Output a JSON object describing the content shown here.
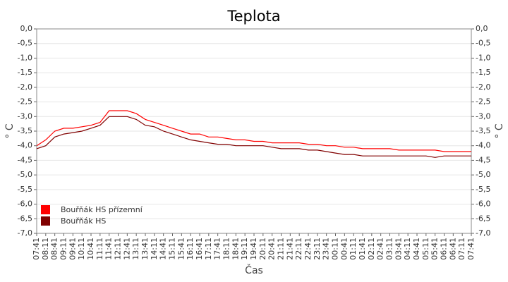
{
  "chart_data": {
    "type": "line",
    "title": "Teplota",
    "x_label": "Čas",
    "y_label": "° C",
    "categories": [
      "07:41",
      "08:11",
      "08:41",
      "09:11",
      "09:41",
      "10:11",
      "10:41",
      "11:11",
      "11:41",
      "12:11",
      "12:41",
      "13:11",
      "13:41",
      "14:11",
      "14:41",
      "15:11",
      "15:41",
      "16:11",
      "16:41",
      "17:11",
      "17:41",
      "18:11",
      "18:41",
      "19:11",
      "19:41",
      "20:11",
      "20:41",
      "21:11",
      "21:41",
      "22:11",
      "22:41",
      "23:11",
      "23:41",
      "00:11",
      "00:41",
      "01:11",
      "01:41",
      "02:11",
      "02:41",
      "03:11",
      "03:41",
      "04:11",
      "04:41",
      "05:11",
      "05:41",
      "06:11",
      "06:41",
      "07:11",
      "07:41"
    ],
    "series": [
      {
        "name": "Bouřňák HS přízemní",
        "color": "#ff0000",
        "values": [
          -4.0,
          -3.8,
          -3.5,
          -3.4,
          -3.4,
          -3.35,
          -3.3,
          -3.2,
          -2.8,
          -2.8,
          -2.8,
          -2.9,
          -3.1,
          -3.2,
          -3.3,
          -3.4,
          -3.5,
          -3.6,
          -3.6,
          -3.7,
          -3.7,
          -3.75,
          -3.8,
          -3.8,
          -3.85,
          -3.85,
          -3.9,
          -3.9,
          -3.9,
          -3.9,
          -3.95,
          -3.95,
          -4.0,
          -4.0,
          -4.05,
          -4.05,
          -4.1,
          -4.1,
          -4.1,
          -4.1,
          -4.15,
          -4.15,
          -4.15,
          -4.15,
          -4.15,
          -4.2,
          -4.2,
          -4.2,
          -4.2
        ]
      },
      {
        "name": "Bouřňák HS",
        "color": "#800000",
        "values": [
          -4.1,
          -4.0,
          -3.7,
          -3.6,
          -3.55,
          -3.5,
          -3.4,
          -3.3,
          -3.0,
          -3.0,
          -3.0,
          -3.1,
          -3.3,
          -3.35,
          -3.5,
          -3.6,
          -3.7,
          -3.8,
          -3.85,
          -3.9,
          -3.95,
          -3.95,
          -4.0,
          -4.0,
          -4.0,
          -4.0,
          -4.05,
          -4.1,
          -4.1,
          -4.1,
          -4.15,
          -4.15,
          -4.2,
          -4.25,
          -4.3,
          -4.3,
          -4.35,
          -4.35,
          -4.35,
          -4.35,
          -4.35,
          -4.35,
          -4.35,
          -4.35,
          -4.4,
          -4.35,
          -4.35,
          -4.35,
          -4.35
        ]
      }
    ],
    "ylim": [
      -7,
      0
    ],
    "yticks": [
      {
        "value": 0,
        "label": "0,0"
      },
      {
        "value": -0.5,
        "label": "-0,5"
      },
      {
        "value": -1,
        "label": "-1,0"
      },
      {
        "value": -1.5,
        "label": "-1,5"
      },
      {
        "value": -2,
        "label": "-2,0"
      },
      {
        "value": -2.5,
        "label": "-2,5"
      },
      {
        "value": -3,
        "label": "-3,0"
      },
      {
        "value": -3.5,
        "label": "-3,5"
      },
      {
        "value": -4,
        "label": "-4,0"
      },
      {
        "value": -4.5,
        "label": "-4,5"
      },
      {
        "value": -5,
        "label": "-5,0"
      },
      {
        "value": -5.5,
        "label": "-5,5"
      },
      {
        "value": -6,
        "label": "-6,0"
      },
      {
        "value": -6.5,
        "label": "-6,5"
      },
      {
        "value": -7,
        "label": "-7,0"
      }
    ],
    "grid": true,
    "legend": "lower-left"
  }
}
